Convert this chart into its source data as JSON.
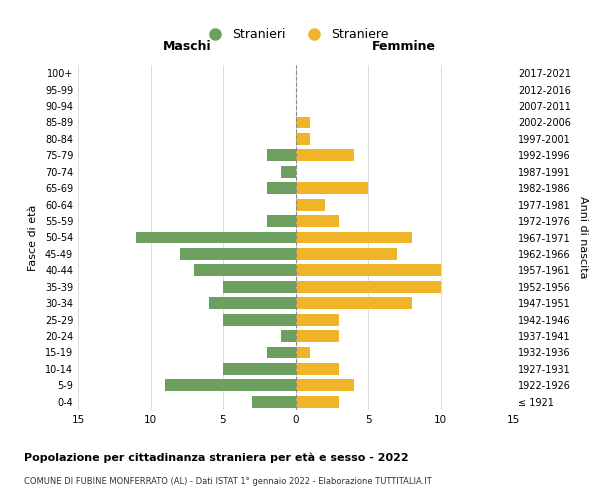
{
  "age_groups": [
    "100+",
    "95-99",
    "90-94",
    "85-89",
    "80-84",
    "75-79",
    "70-74",
    "65-69",
    "60-64",
    "55-59",
    "50-54",
    "45-49",
    "40-44",
    "35-39",
    "30-34",
    "25-29",
    "20-24",
    "15-19",
    "10-14",
    "5-9",
    "0-4"
  ],
  "birth_years": [
    "≤ 1921",
    "1922-1926",
    "1927-1931",
    "1932-1936",
    "1937-1941",
    "1942-1946",
    "1947-1951",
    "1952-1956",
    "1957-1961",
    "1962-1966",
    "1967-1971",
    "1972-1976",
    "1977-1981",
    "1982-1986",
    "1987-1991",
    "1992-1996",
    "1997-2001",
    "2002-2006",
    "2007-2011",
    "2012-2016",
    "2017-2021"
  ],
  "males": [
    0,
    0,
    0,
    0,
    0,
    2,
    1,
    2,
    0,
    2,
    11,
    8,
    7,
    5,
    6,
    5,
    1,
    2,
    5,
    9,
    3
  ],
  "females": [
    0,
    0,
    0,
    1,
    1,
    4,
    0,
    5,
    2,
    3,
    8,
    7,
    10,
    10,
    8,
    3,
    3,
    1,
    3,
    4,
    3
  ],
  "male_color": "#6d9f5e",
  "female_color": "#f0b429",
  "background_color": "#ffffff",
  "grid_color": "#cccccc",
  "center_line_color": "#888888",
  "xlim": 15,
  "title": "Popolazione per cittadinanza straniera per età e sesso - 2022",
  "subtitle": "COMUNE DI FUBINE MONFERRATO (AL) - Dati ISTAT 1° gennaio 2022 - Elaborazione TUTTITALIA.IT",
  "xlabel_left": "Maschi",
  "xlabel_right": "Femmine",
  "ylabel_left": "Fasce di età",
  "ylabel_right": "Anni di nascita",
  "legend_male": "Stranieri",
  "legend_female": "Straniere"
}
